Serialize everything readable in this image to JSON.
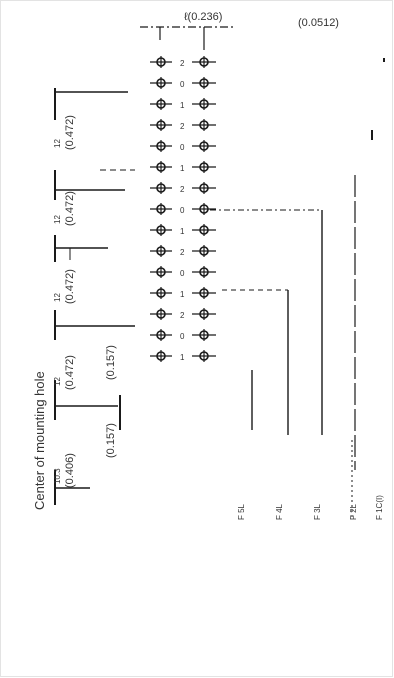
{
  "drawing": {
    "top_label_pitch": "ℓ(0.236)",
    "top_label_right": "(0.0512)",
    "caption_mounting_hole": "Center of mounting hole",
    "dims_inch": [
      "(0.472)",
      "(0.472)",
      "(0.472)",
      "(0.472)",
      "(0.406)",
      "(0.157)",
      "(0.157)"
    ],
    "mm_fragments": [
      "12",
      "12",
      "12",
      "12",
      "10.3"
    ],
    "row_digits": [
      "2",
      "0",
      "1",
      "2",
      "0",
      "1",
      "2",
      "0",
      "1",
      "2",
      "0",
      "1",
      "2",
      "0",
      "1"
    ],
    "bottom_labels": [
      "F 5L",
      "F 4L",
      "F 3L",
      "F 2L",
      "F 1C(I)"
    ],
    "colors": {
      "ink": "#1a1a1a",
      "frame": "#e3e3e3"
    }
  }
}
